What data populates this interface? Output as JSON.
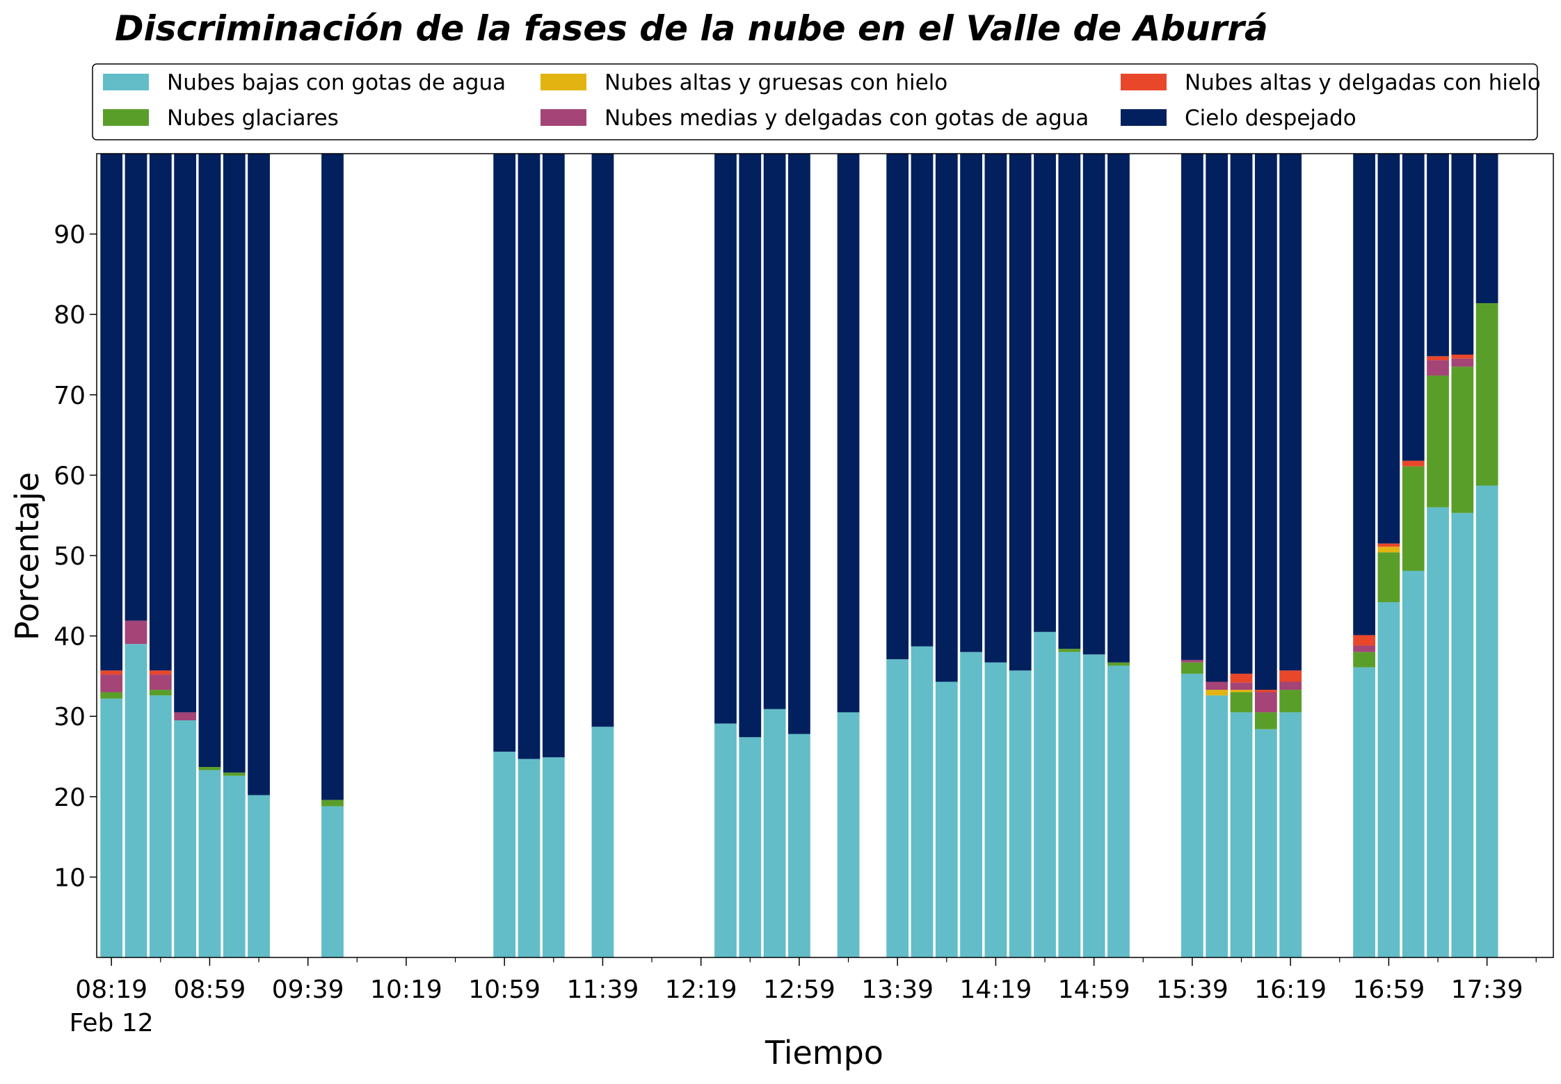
{
  "chart_data": {
    "type": "stacked_bar",
    "title": "Discriminación de la fases de la nube en el Valle de Aburrá",
    "xlabel": "Tiempo",
    "ylabel": "Porcentaje",
    "date_label": "Feb 12",
    "x": [
      "08:19",
      "08:29",
      "08:39",
      "08:49",
      "08:59",
      "09:09",
      "09:19",
      "09:49",
      "10:59",
      "11:09",
      "11:19",
      "11:39",
      "12:29",
      "12:39",
      "12:49",
      "12:59",
      "13:19",
      "13:39",
      "13:49",
      "13:59",
      "14:09",
      "14:19",
      "14:29",
      "14:39",
      "14:49",
      "14:59",
      "15:09",
      "15:39",
      "15:49",
      "15:59",
      "16:09",
      "16:19",
      "16:49",
      "16:59",
      "17:09",
      "17:19",
      "17:29",
      "17:39"
    ],
    "xlim": [
      "08:13",
      "18:06"
    ],
    "xticks": [
      "08:19",
      "08:59",
      "09:39",
      "10:19",
      "10:59",
      "11:39",
      "12:19",
      "12:59",
      "13:39",
      "14:19",
      "14:59",
      "15:39",
      "16:19",
      "16:59",
      "17:39"
    ],
    "xminor_ticks": [
      "08:39",
      "09:19",
      "09:59",
      "10:39",
      "11:19",
      "11:59",
      "12:39",
      "13:19",
      "13:59",
      "14:39",
      "15:19",
      "15:59",
      "16:39",
      "17:19",
      "17:59"
    ],
    "ylim": [
      0,
      100
    ],
    "yticks": [
      10,
      20,
      30,
      40,
      50,
      60,
      70,
      80,
      90
    ],
    "legend": "top",
    "series": [
      {
        "name": "Nubes bajas con gotas de agua",
        "color": "#62bdc8",
        "values": [
          32.2,
          39.0,
          32.6,
          29.5,
          23.3,
          22.6,
          20.2,
          18.8,
          25.6,
          24.7,
          24.9,
          28.7,
          29.1,
          27.4,
          30.9,
          27.8,
          30.5,
          37.1,
          38.7,
          34.3,
          38.0,
          36.7,
          35.7,
          40.5,
          38.0,
          37.7,
          36.3,
          35.3,
          32.6,
          30.5,
          28.4,
          30.5,
          36.1,
          44.2,
          48.1,
          56.0,
          55.3,
          58.7
        ]
      },
      {
        "name": "Nubes glaciares",
        "color": "#5a9e2a",
        "values": [
          0.8,
          0,
          0.7,
          0,
          0.4,
          0.4,
          0,
          0.8,
          0,
          0,
          0,
          0,
          0,
          0,
          0,
          0,
          0,
          0,
          0,
          0,
          0,
          0,
          0,
          0,
          0.4,
          0,
          0.4,
          1.4,
          0,
          2.5,
          2.1,
          2.8,
          1.9,
          6.2,
          13.0,
          16.4,
          18.2,
          22.7
        ]
      },
      {
        "name": "Nubes altas y gruesas con hielo",
        "color": "#e3b312",
        "values": [
          0,
          0,
          0,
          0,
          0,
          0,
          0,
          0,
          0,
          0,
          0,
          0,
          0,
          0,
          0,
          0,
          0,
          0,
          0,
          0,
          0,
          0,
          0,
          0,
          0,
          0,
          0,
          0,
          0.7,
          0.3,
          0,
          0,
          0,
          0.7,
          0,
          0,
          0,
          0
        ]
      },
      {
        "name": "Nubes medias y delgadas con gotas de agua",
        "color": "#a44477",
        "values": [
          2.2,
          2.9,
          1.9,
          1.0,
          0,
          0,
          0,
          0,
          0,
          0,
          0,
          0,
          0,
          0,
          0,
          0,
          0,
          0,
          0,
          0,
          0,
          0,
          0,
          0,
          0,
          0,
          0,
          0.3,
          1.0,
          0.9,
          2.5,
          1.0,
          0.8,
          0,
          0,
          1.9,
          1.0,
          0
        ]
      },
      {
        "name": "Nubes altas y delgadas con hielo",
        "color": "#e8472a",
        "values": [
          0.5,
          0,
          0.5,
          0,
          0,
          0,
          0,
          0,
          0,
          0,
          0,
          0,
          0,
          0,
          0,
          0,
          0,
          0,
          0,
          0,
          0,
          0,
          0,
          0,
          0,
          0,
          0,
          0,
          0,
          1.1,
          0.3,
          1.4,
          1.3,
          0.4,
          0.7,
          0.5,
          0.5,
          0
        ]
      },
      {
        "name": "Cielo despejado",
        "color": "#03205e",
        "values": [
          64.3,
          58.1,
          64.3,
          69.5,
          76.3,
          77.0,
          79.8,
          80.4,
          74.4,
          75.3,
          75.1,
          71.3,
          70.9,
          72.6,
          69.1,
          72.2,
          69.5,
          62.9,
          61.3,
          65.7,
          62.0,
          63.3,
          64.3,
          59.5,
          61.6,
          62.3,
          63.3,
          63.0,
          65.7,
          64.7,
          66.7,
          64.3,
          59.9,
          48.5,
          38.2,
          25.2,
          25.0,
          18.6
        ]
      }
    ]
  }
}
